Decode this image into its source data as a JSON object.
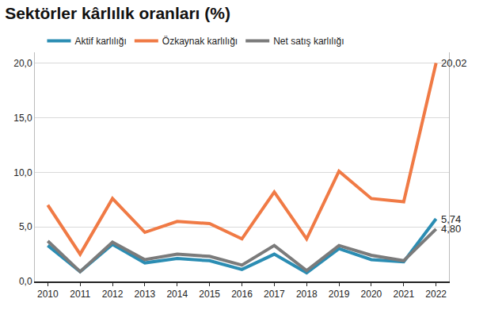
{
  "chart_data": {
    "type": "line",
    "title": "Sektörler kârlılık oranları (%)",
    "categories": [
      "2010",
      "2011",
      "2012",
      "2013",
      "2014",
      "2015",
      "2016",
      "2017",
      "2018",
      "2019",
      "2020",
      "2021",
      "2022"
    ],
    "series": [
      {
        "name": "Aktif karlılığı",
        "color": "#2b8db3",
        "values": [
          3.3,
          0.9,
          3.4,
          1.7,
          2.1,
          1.9,
          1.1,
          2.5,
          0.8,
          3.0,
          2.0,
          1.8,
          5.74
        ],
        "value_labels": [
          null,
          null,
          null,
          null,
          null,
          null,
          null,
          null,
          null,
          null,
          null,
          null,
          "5,74"
        ]
      },
      {
        "name": "Özkaynak karlılığı",
        "color": "#f07a45",
        "values": [
          7.0,
          2.5,
          7.6,
          4.5,
          5.5,
          5.3,
          3.9,
          8.2,
          3.9,
          10.1,
          7.6,
          7.3,
          20.02
        ],
        "value_labels": [
          null,
          null,
          null,
          null,
          null,
          null,
          null,
          null,
          null,
          null,
          null,
          null,
          "20,02"
        ]
      },
      {
        "name": "Net satış karlılığı",
        "color": "#7b7b7b",
        "values": [
          3.7,
          0.9,
          3.6,
          2.0,
          2.5,
          2.3,
          1.5,
          3.3,
          1.0,
          3.3,
          2.4,
          1.9,
          4.8
        ],
        "value_labels": [
          null,
          null,
          null,
          null,
          null,
          null,
          null,
          null,
          null,
          null,
          null,
          null,
          "4,80"
        ]
      }
    ],
    "ylim": [
      0,
      21
    ],
    "yticks": [
      {
        "value": 0,
        "label": "0,0"
      },
      {
        "value": 5,
        "label": "5,0"
      },
      {
        "value": 10,
        "label": "10,0"
      },
      {
        "value": 15,
        "label": "15,0"
      },
      {
        "value": 20,
        "label": "20,0"
      }
    ],
    "grid": true,
    "legend": "top"
  }
}
